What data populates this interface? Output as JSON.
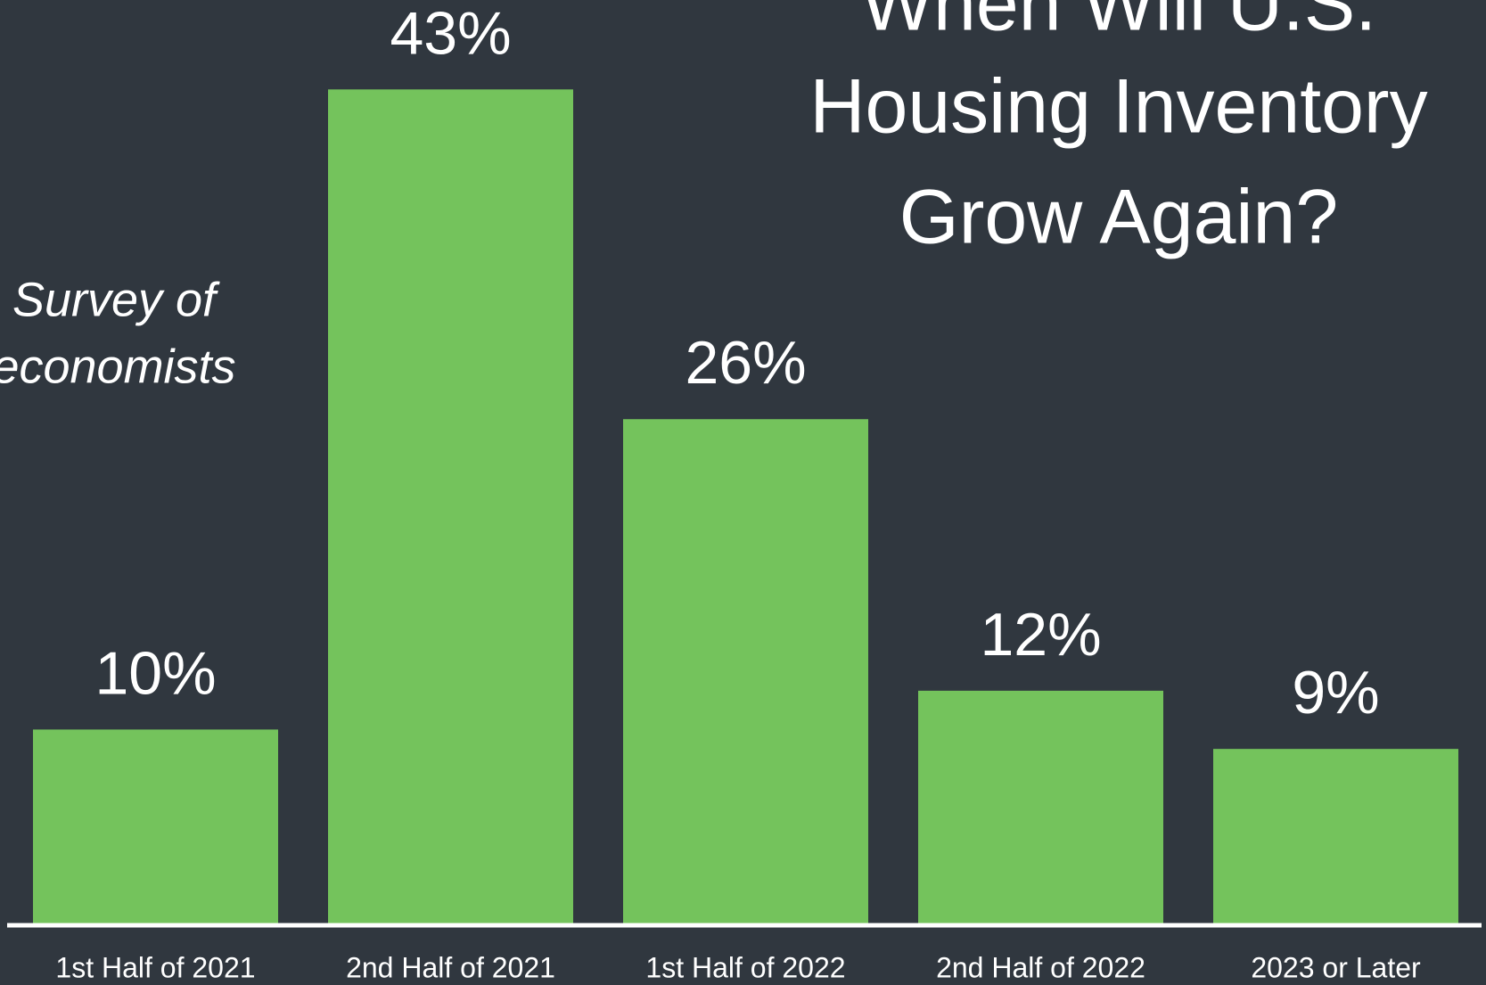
{
  "chart_data": {
    "type": "bar",
    "title": [
      "When Will U.S.",
      "Housing Inventory",
      "Grow Again?"
    ],
    "subtitle": [
      "Survey of",
      "economists"
    ],
    "categories": [
      "1st Half of 2021",
      "2nd Half of 2021",
      "1st Half of 2022",
      "2nd Half of 2022",
      "2023 or Later"
    ],
    "values": [
      10,
      43,
      26,
      12,
      9
    ],
    "value_labels": [
      "10%",
      "43%",
      "26%",
      "12%",
      "9%"
    ],
    "color": "#74c35c"
  }
}
